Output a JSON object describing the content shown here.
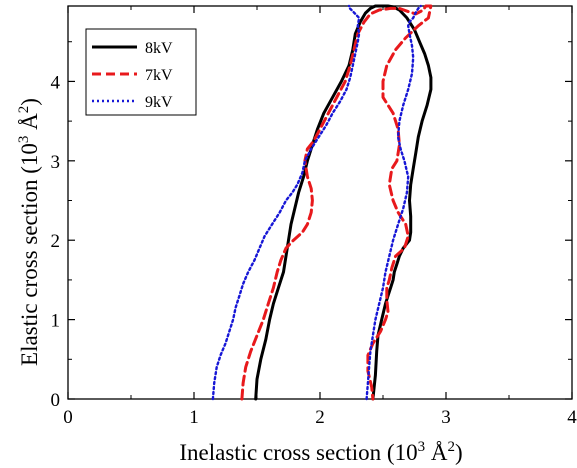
{
  "chart_data": {
    "type": "line",
    "xlabel": {
      "main": "Inelastic cross section (10",
      "sup1": "3",
      "mid": " Å",
      "sup2": "2",
      "end": ")"
    },
    "ylabel": {
      "main": "Elastic cross section (10",
      "sup1": "3",
      "mid": " Å",
      "sup2": "2",
      "end": ")"
    },
    "xlim": [
      0,
      4
    ],
    "ylim": [
      0,
      4.95
    ],
    "xticks": [
      0,
      1,
      2,
      3,
      4
    ],
    "yticks": [
      0,
      1,
      2,
      3,
      4
    ],
    "grid": false,
    "legend_position": "top-left",
    "series": [
      {
        "name": "8kV",
        "color": "#000000",
        "style": "solid",
        "x": [
          1.49,
          1.5,
          1.53,
          1.57,
          1.6,
          1.63,
          1.67,
          1.71,
          1.73,
          1.75,
          1.77,
          1.8,
          1.83,
          1.87,
          1.9,
          1.94,
          1.98,
          2.03,
          2.1,
          2.17,
          2.23,
          2.26,
          2.28,
          2.32,
          2.36,
          2.4,
          2.44,
          2.49,
          2.54,
          2.58,
          2.63,
          2.69,
          2.75,
          2.79,
          2.83,
          2.86,
          2.88,
          2.88,
          2.85,
          2.81,
          2.78,
          2.76,
          2.74,
          2.72,
          2.71,
          2.72,
          2.72,
          2.71,
          2.66,
          2.63,
          2.61,
          2.59,
          2.58,
          2.56,
          2.54,
          2.52,
          2.49,
          2.46,
          2.45,
          2.44,
          2.42
        ],
        "y": [
          0.0,
          0.25,
          0.5,
          0.75,
          1.0,
          1.2,
          1.4,
          1.6,
          1.8,
          2.0,
          2.2,
          2.4,
          2.6,
          2.8,
          3.0,
          3.2,
          3.4,
          3.6,
          3.8,
          4.0,
          4.2,
          4.4,
          4.6,
          4.75,
          4.86,
          4.92,
          4.95,
          4.95,
          4.95,
          4.94,
          4.9,
          4.8,
          4.65,
          4.5,
          4.35,
          4.2,
          4.05,
          3.9,
          3.7,
          3.5,
          3.3,
          3.1,
          2.9,
          2.7,
          2.5,
          2.3,
          2.1,
          2.0,
          1.9,
          1.8,
          1.7,
          1.6,
          1.5,
          1.4,
          1.3,
          1.2,
          1.0,
          0.8,
          0.6,
          0.3,
          0.0
        ]
      },
      {
        "name": "7kV",
        "color": "#e8191c",
        "style": "dashed",
        "x": [
          1.38,
          1.39,
          1.41,
          1.45,
          1.5,
          1.55,
          1.59,
          1.63,
          1.66,
          1.69,
          1.73,
          1.79,
          1.86,
          1.9,
          1.93,
          1.94,
          1.93,
          1.9,
          1.88,
          1.9,
          1.95,
          2.0,
          2.05,
          2.1,
          2.15,
          2.2,
          2.24,
          2.27,
          2.3,
          2.35,
          2.4,
          2.47,
          2.56,
          2.63,
          2.7,
          2.76,
          2.82,
          2.84,
          2.88,
          2.86,
          2.78,
          2.68,
          2.6,
          2.53,
          2.5,
          2.5,
          2.58,
          2.62,
          2.63,
          2.61,
          2.57,
          2.55,
          2.58,
          2.62,
          2.68,
          2.7,
          2.67,
          2.6,
          2.57,
          2.55,
          2.53,
          2.53,
          2.54,
          2.52,
          2.48,
          2.42,
          2.38,
          2.38,
          2.41,
          2.42
        ],
        "y": [
          0.0,
          0.2,
          0.4,
          0.6,
          0.8,
          1.0,
          1.2,
          1.4,
          1.6,
          1.75,
          1.9,
          2.0,
          2.1,
          2.2,
          2.35,
          2.5,
          2.65,
          2.8,
          3.0,
          3.15,
          3.25,
          3.4,
          3.55,
          3.7,
          3.85,
          4.0,
          4.2,
          4.4,
          4.6,
          4.75,
          4.85,
          4.9,
          4.92,
          4.92,
          4.88,
          4.85,
          4.9,
          4.95,
          4.95,
          4.8,
          4.7,
          4.55,
          4.4,
          4.2,
          4.0,
          3.8,
          3.6,
          3.4,
          3.2,
          3.0,
          2.9,
          2.7,
          2.5,
          2.35,
          2.2,
          2.05,
          1.9,
          1.8,
          1.65,
          1.5,
          1.4,
          1.25,
          1.1,
          1.0,
          0.85,
          0.7,
          0.55,
          0.35,
          0.15,
          0.0
        ]
      },
      {
        "name": "9kV",
        "color": "#1717d6",
        "style": "dotted",
        "x": [
          1.15,
          1.16,
          1.18,
          1.21,
          1.25,
          1.28,
          1.31,
          1.33,
          1.36,
          1.39,
          1.43,
          1.48,
          1.52,
          1.56,
          1.62,
          1.68,
          1.73,
          1.78,
          1.82,
          1.86,
          1.88,
          1.93,
          1.99,
          2.05,
          2.1,
          2.16,
          2.21,
          2.24,
          2.26,
          2.28,
          2.3,
          2.31,
          2.3,
          2.31,
          2.28,
          2.25,
          2.23,
          2.23
        ],
        "y": [
          0.0,
          0.2,
          0.4,
          0.55,
          0.7,
          0.85,
          1.0,
          1.15,
          1.3,
          1.45,
          1.6,
          1.75,
          1.9,
          2.05,
          2.2,
          2.35,
          2.5,
          2.6,
          2.7,
          2.85,
          3.0,
          3.15,
          3.3,
          3.45,
          3.6,
          3.75,
          3.9,
          4.05,
          4.2,
          4.35,
          4.5,
          4.6,
          4.7,
          4.8,
          4.85,
          4.9,
          4.93,
          4.95
        ]
      },
      {
        "name": "",
        "color": "#1717d6",
        "style": "dotted",
        "x": [
          2.37,
          2.38,
          2.39,
          2.4,
          2.42,
          2.44,
          2.47,
          2.5,
          2.52,
          2.55,
          2.58,
          2.62,
          2.66,
          2.69,
          2.7,
          2.67,
          2.64,
          2.62,
          2.63,
          2.66,
          2.7,
          2.73,
          2.74,
          2.73,
          2.71,
          2.7,
          2.71,
          2.74,
          2.76,
          2.78,
          2.8
        ],
        "y": [
          0.0,
          0.2,
          0.4,
          0.6,
          0.8,
          1.0,
          1.2,
          1.4,
          1.6,
          1.8,
          2.0,
          2.2,
          2.4,
          2.6,
          2.8,
          3.0,
          3.15,
          3.3,
          3.5,
          3.7,
          3.9,
          4.1,
          4.3,
          4.45,
          4.6,
          4.7,
          4.75,
          4.8,
          4.87,
          4.92,
          4.95
        ]
      }
    ]
  }
}
